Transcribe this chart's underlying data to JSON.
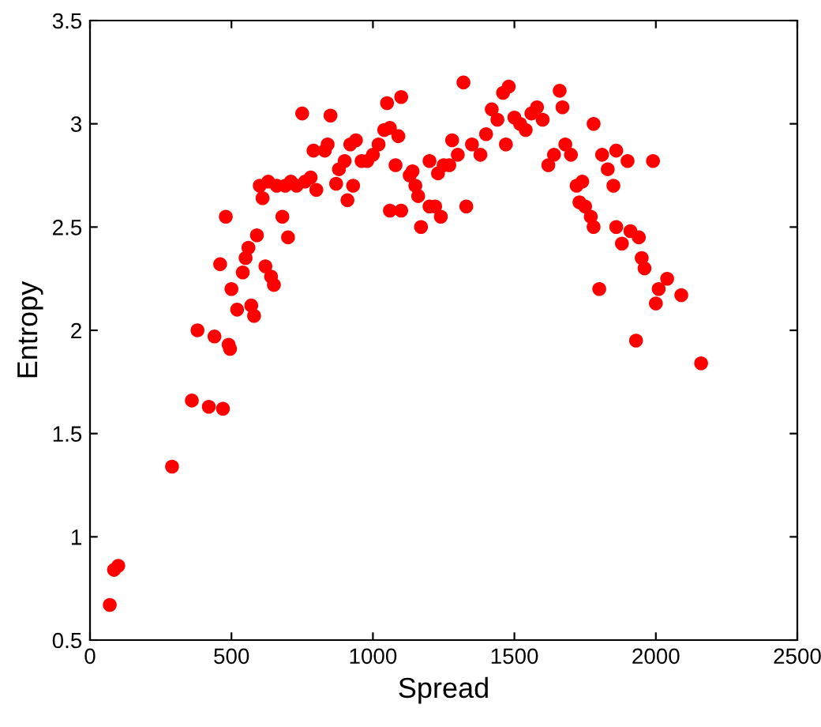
{
  "chart_data": {
    "type": "scatter",
    "xlabel": "Spread",
    "ylabel": "Entropy",
    "marker": "circle",
    "grid": false,
    "legend": false,
    "xlim": [
      0,
      2500
    ],
    "xticks": [
      0,
      500,
      1000,
      1500,
      2000,
      2500
    ],
    "ylim": [
      0.5,
      3.5
    ],
    "yticks": [
      0.5,
      1,
      1.5,
      2,
      2.5,
      3,
      3.5
    ],
    "series": [
      {
        "color": "#ff0000",
        "x": [
          70,
          85,
          100,
          290,
          360,
          420,
          470,
          380,
          440,
          490,
          495,
          460,
          480,
          500,
          520,
          540,
          550,
          560,
          570,
          580,
          590,
          620,
          640,
          650,
          680,
          700,
          600,
          610,
          630,
          660,
          690,
          710,
          730,
          750,
          760,
          780,
          790,
          800,
          830,
          850,
          840,
          870,
          880,
          900,
          910,
          920,
          930,
          940,
          960,
          980,
          1000,
          1020,
          1040,
          1050,
          1060,
          1080,
          1090,
          1100,
          1060,
          1100,
          1130,
          1150,
          1160,
          1170,
          1200,
          1220,
          1230,
          1240,
          1250,
          1270,
          1280,
          1300,
          1320,
          1330,
          1350,
          1380,
          1400,
          1420,
          1440,
          1460,
          1480,
          1470,
          1500,
          1520,
          1540,
          1560,
          1580,
          1600,
          1620,
          1640,
          1660,
          1670,
          1680,
          1700,
          1720,
          1740,
          1730,
          1750,
          1770,
          1780,
          1780,
          1800,
          1810,
          1830,
          1850,
          1860,
          1860,
          1880,
          1900,
          1910,
          1930,
          1940,
          1950,
          1960,
          1990,
          2000,
          2010,
          2040,
          2090,
          2160,
          1200,
          1140
        ],
        "values": [
          0.67,
          0.84,
          0.86,
          1.34,
          1.66,
          1.63,
          1.62,
          2.0,
          1.97,
          1.93,
          1.91,
          2.32,
          2.55,
          2.2,
          2.1,
          2.28,
          2.35,
          2.4,
          2.12,
          2.07,
          2.46,
          2.31,
          2.26,
          2.22,
          2.55,
          2.45,
          2.7,
          2.64,
          2.72,
          2.7,
          2.7,
          2.72,
          2.7,
          3.05,
          2.72,
          2.74,
          2.87,
          2.68,
          2.87,
          3.04,
          2.9,
          2.71,
          2.78,
          2.82,
          2.63,
          2.9,
          2.7,
          2.92,
          2.82,
          2.82,
          2.85,
          2.9,
          2.97,
          3.1,
          2.98,
          2.8,
          2.94,
          3.13,
          2.58,
          2.58,
          2.75,
          2.7,
          2.65,
          2.5,
          2.82,
          2.6,
          2.76,
          2.55,
          2.8,
          2.8,
          2.92,
          2.85,
          3.2,
          2.6,
          2.9,
          2.85,
          2.95,
          3.07,
          3.02,
          3.15,
          3.18,
          2.9,
          3.03,
          3.0,
          2.97,
          3.05,
          3.08,
          3.02,
          2.8,
          2.85,
          3.16,
          3.08,
          2.9,
          2.85,
          2.7,
          2.72,
          2.62,
          2.6,
          2.55,
          2.5,
          3.0,
          2.2,
          2.85,
          2.78,
          2.7,
          2.87,
          2.5,
          2.42,
          2.82,
          2.48,
          1.95,
          2.45,
          2.35,
          2.3,
          2.82,
          2.13,
          2.2,
          2.25,
          2.17,
          1.84,
          2.6,
          2.77
        ]
      }
    ]
  }
}
